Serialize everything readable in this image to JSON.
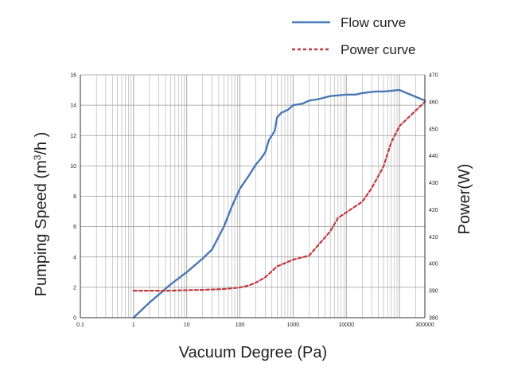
{
  "chart_data": {
    "type": "line",
    "xlabel": "Vacuum Degree (Pa)",
    "ylabel": "Pumping Speed (m³/h )",
    "ylabel_parts": {
      "pre": "Pumping Speed (m",
      "sup": "3",
      "post": "/h )"
    },
    "y2label": "Power(W)",
    "x_scale": "log",
    "xlim": [
      0.1,
      300000
    ],
    "ylim": [
      0,
      16
    ],
    "y2lim": [
      380,
      470
    ],
    "x_ticks": [
      {
        "value": 0.1,
        "label": "0.1"
      },
      {
        "value": 1,
        "label": "1"
      },
      {
        "value": 10,
        "label": "10"
      },
      {
        "value": 100,
        "label": "100"
      },
      {
        "value": 1000,
        "label": "1000"
      },
      {
        "value": 10000,
        "label": "10000"
      },
      {
        "value": 300000,
        "label": "300000"
      }
    ],
    "y_ticks": [
      0,
      2,
      4,
      6,
      8,
      10,
      12,
      14,
      16
    ],
    "y2_ticks": [
      380,
      390,
      400,
      410,
      420,
      430,
      440,
      450,
      460,
      470
    ],
    "grid": true,
    "legend_position": "top-right",
    "colors": {
      "flow": "#4a78b5",
      "power": "#c0393f",
      "grid": "#9a9a9a",
      "axis": "#333333",
      "text": "#222222"
    },
    "series": [
      {
        "name": "Flow curve",
        "axis": "left",
        "style": "solid",
        "x": [
          1,
          2,
          5,
          10,
          20,
          30,
          50,
          70,
          100,
          150,
          200,
          250,
          300,
          350,
          450,
          500,
          600,
          800,
          1000,
          1500,
          2000,
          3000,
          5000,
          10000,
          15000,
          20000,
          35000,
          50000,
          100000,
          300000
        ],
        "y": [
          0,
          1,
          2.2,
          3,
          3.9,
          4.5,
          6,
          7.3,
          8.5,
          9.4,
          10.1,
          10.5,
          10.9,
          11.7,
          12.3,
          13.2,
          13.5,
          13.7,
          14,
          14.1,
          14.3,
          14.4,
          14.6,
          14.7,
          14.7,
          14.8,
          14.9,
          14.9,
          15,
          14.3
        ]
      },
      {
        "name": "Power curve",
        "axis": "right",
        "style": "dashed",
        "x": [
          1,
          5,
          10,
          20,
          50,
          100,
          150,
          200,
          300,
          500,
          1000,
          2000,
          3000,
          5000,
          7000,
          10000,
          20000,
          30000,
          50000,
          70000,
          100000,
          300000
        ],
        "y": [
          390,
          390,
          390.2,
          390.3,
          390.6,
          391.2,
          392,
          393,
          395,
          399,
          401.5,
          403,
          407,
          412,
          417,
          419,
          423,
          428,
          436,
          445,
          451,
          460
        ]
      }
    ]
  }
}
